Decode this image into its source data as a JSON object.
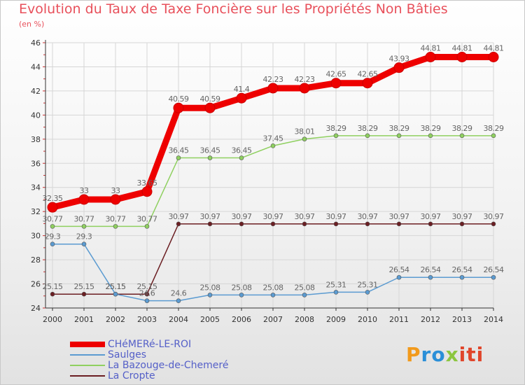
{
  "chart_data": {
    "type": "line",
    "title": "Evolution du Taux de Taxe Foncière sur les Propriétés Non Bâties",
    "ylabel": "(en %)",
    "xlabel": "",
    "ylim": [
      24,
      46
    ],
    "yticks": [
      24,
      26,
      28,
      30,
      32,
      34,
      36,
      38,
      40,
      42,
      44,
      46
    ],
    "categories": [
      "2000",
      "2001",
      "2002",
      "2003",
      "2004",
      "2005",
      "2006",
      "2007",
      "2008",
      "2009",
      "2010",
      "2011",
      "2012",
      "2013",
      "2014"
    ],
    "series": [
      {
        "name": "CHéMERé-LE-ROI",
        "color": "#ee0000",
        "values": [
          32.35,
          33,
          33,
          33.65,
          40.59,
          40.59,
          41.4,
          42.23,
          42.23,
          42.65,
          42.65,
          43.93,
          44.81,
          44.81,
          44.81
        ],
        "labels": [
          "32.35",
          "33",
          "33",
          "33.65",
          "40.59",
          "40.59",
          "41.4",
          "42.23",
          "42.23",
          "42.65",
          "42.65",
          "43.93",
          "44.81",
          "44.81",
          "44.81"
        ]
      },
      {
        "name": "Saulges",
        "color": "#5b9bd1",
        "values": [
          29.3,
          29.3,
          25.15,
          24.6,
          24.6,
          25.08,
          25.08,
          25.08,
          25.08,
          25.31,
          25.31,
          26.54,
          26.54,
          26.54,
          26.54
        ],
        "labels": [
          "29.3",
          "29.3",
          "25.15",
          "24.6",
          "24.6",
          "25.08",
          "25.08",
          "25.08",
          "25.08",
          "25.31",
          "25.31",
          "26.54",
          "26.54",
          "26.54",
          "26.54"
        ]
      },
      {
        "name": "La Bazouge-de-Chemeré",
        "color": "#8fd060",
        "values": [
          30.77,
          30.77,
          30.77,
          30.77,
          36.45,
          36.45,
          36.45,
          37.45,
          38.01,
          38.29,
          38.29,
          38.29,
          38.29,
          38.29,
          38.29
        ],
        "labels": [
          "30.77",
          "30.77",
          "30.77",
          "30.77",
          "36.45",
          "36.45",
          "36.45",
          "37.45",
          "38.01",
          "38.29",
          "38.29",
          "38.29",
          "38.29",
          "38.29",
          "38.29"
        ]
      },
      {
        "name": "La Cropte",
        "color": "#6b1e22",
        "values": [
          25.15,
          25.15,
          25.15,
          25.15,
          30.97,
          30.97,
          30.97,
          30.97,
          30.97,
          30.97,
          30.97,
          30.97,
          30.97,
          30.97,
          30.97
        ],
        "labels": [
          "25.15",
          "25.15",
          "25.15",
          "25.15",
          "30.97",
          "30.97",
          "30.97",
          "30.97",
          "30.97",
          "30.97",
          "30.97",
          "30.97",
          "30.97",
          "30.97",
          "30.97"
        ]
      }
    ],
    "legend_position": "bottom-left"
  },
  "logo": {
    "p1": "P",
    "p2": "ro",
    "p3": "x",
    "p4": "iti"
  },
  "colors": {
    "title": "#e8505b",
    "legend_text": "#5560c8",
    "axis": "#333333",
    "label": "#666666"
  }
}
